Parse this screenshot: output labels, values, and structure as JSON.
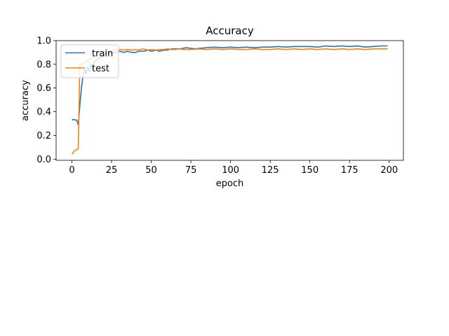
{
  "chart_data": {
    "type": "line",
    "title": "Accuracy",
    "xlabel": "epoch",
    "ylabel": "accuracy",
    "xlim": [
      -9.95,
      208.95
    ],
    "ylim": [
      -0.01,
      1.0
    ],
    "xticks": [
      0,
      25,
      50,
      75,
      100,
      125,
      150,
      175,
      200
    ],
    "xtick_labels": [
      "0",
      "25",
      "50",
      "75",
      "100",
      "125",
      "150",
      "175",
      "200"
    ],
    "yticks": [
      0.0,
      0.2,
      0.4,
      0.6,
      0.8,
      1.0
    ],
    "ytick_labels": [
      "0.0",
      "0.2",
      "0.4",
      "0.6",
      "0.8",
      "1.0"
    ],
    "grid": false,
    "legend": {
      "position": "upper-left"
    },
    "series": [
      {
        "name": "train",
        "color": "#1f77b4",
        "x": [
          0,
          1,
          2,
          3,
          4,
          5,
          6,
          7,
          8,
          9,
          10,
          11,
          12,
          13,
          14,
          15,
          16,
          17,
          18,
          19,
          20,
          22,
          25,
          28,
          30,
          33,
          35,
          38,
          40,
          42,
          45,
          48,
          50,
          53,
          55,
          58,
          60,
          63,
          65,
          68,
          70,
          72,
          75,
          78,
          80,
          85,
          90,
          95,
          100,
          105,
          110,
          115,
          120,
          125,
          130,
          135,
          140,
          145,
          150,
          155,
          160,
          165,
          170,
          175,
          180,
          185,
          190,
          195,
          199
        ],
        "y": [
          0.33,
          0.335,
          0.33,
          0.33,
          0.29,
          0.45,
          0.6,
          0.7,
          0.76,
          0.72,
          0.78,
          0.74,
          0.8,
          0.76,
          0.82,
          0.83,
          0.84,
          0.85,
          0.86,
          0.87,
          0.88,
          0.89,
          0.9,
          0.9,
          0.91,
          0.9,
          0.91,
          0.9,
          0.9,
          0.91,
          0.91,
          0.92,
          0.91,
          0.92,
          0.91,
          0.92,
          0.92,
          0.93,
          0.93,
          0.93,
          0.935,
          0.94,
          0.935,
          0.93,
          0.935,
          0.94,
          0.945,
          0.94,
          0.945,
          0.94,
          0.945,
          0.94,
          0.945,
          0.945,
          0.95,
          0.945,
          0.95,
          0.95,
          0.95,
          0.945,
          0.955,
          0.95,
          0.955,
          0.95,
          0.955,
          0.945,
          0.95,
          0.955,
          0.955
        ]
      },
      {
        "name": "test",
        "color": "#ff7f0e",
        "x": [
          0,
          1,
          2,
          3,
          4,
          5,
          6,
          7,
          8,
          9,
          10,
          11,
          12,
          13,
          14,
          15,
          16,
          17,
          18,
          19,
          20,
          22,
          25,
          28,
          30,
          33,
          35,
          38,
          40,
          42,
          45,
          48,
          50,
          53,
          55,
          58,
          60,
          63,
          65,
          68,
          70,
          75,
          80,
          85,
          90,
          95,
          100,
          105,
          110,
          115,
          120,
          125,
          130,
          135,
          140,
          145,
          150,
          155,
          160,
          165,
          170,
          175,
          180,
          185,
          190,
          195,
          199
        ],
        "y": [
          0.04,
          0.06,
          0.075,
          0.08,
          0.085,
          0.8,
          0.8,
          0.8,
          0.81,
          0.82,
          0.83,
          0.84,
          0.85,
          0.86,
          0.87,
          0.88,
          0.88,
          0.89,
          0.9,
          0.9,
          0.905,
          0.91,
          0.92,
          0.92,
          0.925,
          0.92,
          0.925,
          0.92,
          0.925,
          0.92,
          0.93,
          0.92,
          0.925,
          0.92,
          0.925,
          0.925,
          0.93,
          0.925,
          0.925,
          0.93,
          0.925,
          0.925,
          0.93,
          0.925,
          0.93,
          0.925,
          0.93,
          0.925,
          0.925,
          0.93,
          0.925,
          0.925,
          0.93,
          0.925,
          0.93,
          0.925,
          0.93,
          0.925,
          0.93,
          0.925,
          0.93,
          0.925,
          0.93,
          0.925,
          0.93,
          0.93,
          0.93
        ]
      }
    ]
  }
}
